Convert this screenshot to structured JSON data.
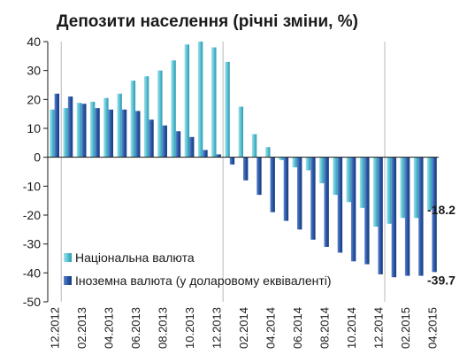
{
  "chart_data": {
    "type": "bar",
    "title": "Депозити населення (річні зміни, %)",
    "xlabel": "",
    "ylabel": "",
    "ylim": [
      -50,
      40
    ],
    "y_ticks": [
      -50,
      -40,
      -30,
      -20,
      -10,
      0,
      10,
      20,
      30,
      40
    ],
    "grid": false,
    "legend_position": "bottom-left",
    "categories": [
      "12.2012",
      "01.2013",
      "02.2013",
      "03.2013",
      "04.2013",
      "05.2013",
      "06.2013",
      "07.2013",
      "08.2013",
      "09.2013",
      "10.2013",
      "11.2013",
      "12.2013",
      "01.2014",
      "02.2014",
      "03.2014",
      "04.2014",
      "05.2014",
      "06.2014",
      "07.2014",
      "08.2014",
      "09.2014",
      "10.2014",
      "11.2014",
      "12.2014",
      "01.2015",
      "02.2015",
      "03.2015",
      "04.2015"
    ],
    "x_tick_labels": [
      "12.2012",
      "02.2013",
      "04.2013",
      "06.2013",
      "08.2013",
      "10.2013",
      "12.2013",
      "02.2014",
      "04.2014",
      "06.2014",
      "08.2014",
      "10.2014",
      "12.2014",
      "02.2015",
      "04.2015"
    ],
    "series": [
      {
        "name": "Національна валюта",
        "color": "#5bc3d5",
        "values": [
          16.5,
          17,
          18.8,
          19.2,
          20.5,
          22,
          26.5,
          28,
          30,
          33.5,
          39,
          40,
          38,
          33,
          17.5,
          8,
          3.5,
          -1,
          -3.5,
          -4.5,
          -9,
          -13,
          -15.5,
          -17.5,
          -24,
          -23,
          -21,
          -21,
          -18.2
        ]
      },
      {
        "name": "Іноземна валюта (у доларовому еквіваленті)",
        "color": "#2a57a8",
        "values": [
          22,
          21,
          18.5,
          17,
          16.5,
          16.5,
          16,
          13,
          11,
          9,
          7,
          2.5,
          1,
          -2.5,
          -8,
          -13,
          -19,
          -22,
          -25,
          -28.5,
          -31,
          -33,
          -36,
          -37,
          -40.5,
          -41.5,
          -41,
          -41,
          -39.7
        ]
      }
    ],
    "annotations": [
      "-18.2",
      "-39.7"
    ]
  },
  "colors": {
    "axis": "#1a1a1a",
    "separator": "#b8b8b8"
  }
}
